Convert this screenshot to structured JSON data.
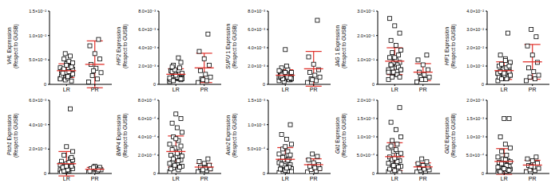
{
  "chart_data": [
    {
      "type": "scatter",
      "y_label": "VHL Expression (Respect to GUSB)",
      "categories": [
        "LR",
        "PR"
      ],
      "marker": "square",
      "color": "#000000",
      "ylim": [
        0,
        0.015
      ],
      "yticks": [
        0,
        {
          "value": 0.005,
          "label": "5.0×10⁻³"
        },
        {
          "value": 0.01,
          "label": "1.0×10⁻²"
        },
        {
          "value": 0.015,
          "label": "1.5×10⁻²"
        }
      ],
      "values": [
        [
          0.0012,
          0.0018,
          0.0025,
          0.0031,
          0.0022,
          0.0015,
          0.0038,
          0.0042,
          0.0027,
          0.0019,
          0.0009,
          0.0034,
          0.0047,
          0.0052,
          0.0021,
          0.0013,
          0.0029,
          0.0036,
          0.0024,
          0.0017,
          0.0058,
          0.0063,
          0.0011,
          0.0026,
          0.0032,
          0.0044,
          0.0016,
          0.0023,
          0.0007,
          0.0039
        ],
        [
          0.0005,
          0.0011,
          0.0018,
          0.0024,
          0.0033,
          0.0041,
          0.0052,
          0.0063,
          0.0079,
          0.0092,
          0.0028
        ]
      ],
      "mean": [
        0.0028,
        0.0041
      ],
      "sd": [
        0.0014,
        0.0048
      ]
    },
    {
      "type": "scatter",
      "y_label": "HIF2 Expression (Respect to GUSB)",
      "categories": [
        "LR",
        "PR"
      ],
      "marker": "square",
      "color": "#000000",
      "ylim": [
        0,
        0.008
      ],
      "yticks": [
        0,
        {
          "value": 0.002,
          "label": "2.0×10⁻³"
        },
        {
          "value": 0.004,
          "label": "4.0×10⁻³"
        },
        {
          "value": 0.006,
          "label": "6.0×10⁻³"
        },
        {
          "value": 0.008,
          "label": "8.0×10⁻³"
        }
      ],
      "values": [
        [
          0.0004,
          0.0006,
          0.0008,
          0.0011,
          0.0009,
          0.0013,
          0.0005,
          0.0007,
          0.0015,
          0.0018,
          0.0012,
          0.0003,
          0.001,
          0.0021,
          0.0006,
          0.0008,
          0.0014,
          0.0024,
          0.0009,
          0.0005,
          0.0011,
          0.0016,
          0.0007,
          0.0029,
          0.0004,
          0.0012,
          0.0008,
          0.0019,
          0.0006,
          0.001
        ],
        [
          0.0002,
          0.0004,
          0.0006,
          0.0008,
          0.0011,
          0.0015,
          0.0021,
          0.0028,
          0.0036,
          0.0055,
          0.0005
        ]
      ],
      "mean": [
        0.0011,
        0.0018
      ],
      "sd": [
        0.0006,
        0.0016
      ]
    },
    {
      "type": "scatter",
      "y_label": "SUFU 1 Expression (Respect to GUSB)",
      "categories": [
        "LR",
        "PR"
      ],
      "marker": "square",
      "color": "#000000",
      "ylim": [
        0,
        0.008
      ],
      "yticks": [
        0,
        {
          "value": 0.002,
          "label": "2.0×10⁻³"
        },
        {
          "value": 0.004,
          "label": "4.0×10⁻³"
        },
        {
          "value": 0.006,
          "label": "6.0×10⁻³"
        },
        {
          "value": 0.008,
          "label": "8.0×10⁻³"
        }
      ],
      "values": [
        [
          0.0004,
          0.0006,
          0.0008,
          0.001,
          0.0012,
          0.0007,
          0.0005,
          0.0009,
          0.0014,
          0.0011,
          0.0003,
          0.0008,
          0.0016,
          0.0006,
          0.0013,
          0.001,
          0.0018,
          0.0007,
          0.0038,
          0.0009,
          0.0005,
          0.0012,
          0.0015,
          0.0008,
          0.0011,
          0.0006,
          0.002,
          0.001,
          0.0007,
          0.0013
        ],
        [
          0.0002,
          0.0004,
          0.0006,
          0.0008,
          0.001,
          0.0013,
          0.0016,
          0.0022,
          0.003,
          0.007,
          0.0005
        ]
      ],
      "mean": [
        0.001,
        0.0017
      ],
      "sd": [
        0.0006,
        0.0019
      ]
    },
    {
      "type": "scatter",
      "y_label": "JAG 1 Expression (Respect to GUSB)",
      "categories": [
        "LR",
        "PR"
      ],
      "marker": "square",
      "color": "#000000",
      "ylim": [
        0,
        0.3
      ],
      "yticks": [
        0,
        {
          "value": 0.1,
          "label": "1.0×10⁻¹"
        },
        {
          "value": 0.2,
          "label": "2.0×10⁻¹"
        },
        {
          "value": 0.3,
          "label": "3.0×10⁻¹"
        }
      ],
      "values": [
        [
          0.02,
          0.04,
          0.05,
          0.06,
          0.07,
          0.08,
          0.09,
          0.1,
          0.11,
          0.12,
          0.05,
          0.06,
          0.08,
          0.03,
          0.14,
          0.16,
          0.18,
          0.21,
          0.24,
          0.27,
          0.07,
          0.09,
          0.05,
          0.04,
          0.13,
          0.06,
          0.1,
          0.08,
          0.03,
          0.11
        ],
        [
          0.01,
          0.02,
          0.03,
          0.03,
          0.04,
          0.05,
          0.06,
          0.08,
          0.1,
          0.12,
          0.02
        ]
      ],
      "mean": [
        0.095,
        0.05
      ],
      "sd": [
        0.055,
        0.035
      ]
    },
    {
      "type": "scatter",
      "y_label": "HIF1 Expression (Respect to GUSB)",
      "categories": [
        "LR",
        "PR"
      ],
      "marker": "square",
      "color": "#000000",
      "ylim": [
        0,
        0.04
      ],
      "yticks": [
        0,
        {
          "value": 0.01,
          "label": "1.0×10⁻²"
        },
        {
          "value": 0.02,
          "label": "2.0×10⁻²"
        },
        {
          "value": 0.03,
          "label": "3.0×10⁻²"
        },
        {
          "value": 0.04,
          "label": "4.0×10⁻²"
        }
      ],
      "values": [
        [
          0.002,
          0.003,
          0.004,
          0.005,
          0.006,
          0.007,
          0.008,
          0.009,
          0.01,
          0.004,
          0.005,
          0.006,
          0.003,
          0.011,
          0.012,
          0.014,
          0.016,
          0.007,
          0.005,
          0.004,
          0.028,
          0.008,
          0.006,
          0.009,
          0.003,
          0.005,
          0.013,
          0.007,
          0.01,
          0.006
        ],
        [
          0.002,
          0.003,
          0.004,
          0.005,
          0.007,
          0.009,
          0.012,
          0.016,
          0.021,
          0.026,
          0.03
        ]
      ],
      "mean": [
        0.0075,
        0.0123
      ],
      "sd": [
        0.0048,
        0.0095
      ]
    },
    {
      "type": "scatter",
      "y_label": "Ptch1 Expression (Respect to GUSB)",
      "categories": [
        "LR",
        "PR"
      ],
      "marker": "square",
      "color": "#000000",
      "ylim": [
        0,
        0.006
      ],
      "yticks": [
        0,
        {
          "value": 0.002,
          "label": "2.0×10⁻³"
        },
        {
          "value": 0.004,
          "label": "4.0×10⁻³"
        },
        {
          "value": 0.006,
          "label": "6.0×10⁻³"
        }
      ],
      "values": [
        [
          0.0001,
          0.0002,
          0.0003,
          0.0004,
          0.0005,
          0.0006,
          0.0007,
          0.0008,
          0.001,
          0.0012,
          0.0002,
          0.0003,
          0.0004,
          0.0015,
          0.0018,
          0.0003,
          0.0005,
          0.0006,
          0.0022,
          0.0001,
          0.0053,
          0.0004,
          0.0007,
          0.0009,
          0.0002,
          0.0011,
          0.0003,
          0.0005,
          0.0013,
          0.0006
        ],
        [
          0.0001,
          0.0002,
          0.0003,
          0.0003,
          0.0004,
          0.0004,
          0.0005,
          0.0006,
          0.0002,
          0.0003,
          0.0005
        ]
      ],
      "mean": [
        0.0008,
        0.00035
      ],
      "sd": [
        0.001,
        0.00015
      ]
    },
    {
      "type": "scatter",
      "y_label": "BMP4 Expression (Respect to GUSB)",
      "categories": [
        "LR",
        "PR"
      ],
      "marker": "square",
      "color": "#000000",
      "ylim": [
        0,
        0.0008
      ],
      "yticks": [
        0,
        {
          "value": 0.0002,
          "label": "2.0×10⁻⁴"
        },
        {
          "value": 0.0004,
          "label": "4.0×10⁻⁴"
        },
        {
          "value": 0.0006,
          "label": "6.0×10⁻⁴"
        },
        {
          "value": 0.0008,
          "label": "8.0×10⁻⁴"
        }
      ],
      "values": [
        [
          2e-05,
          4e-05,
          6e-05,
          8e-05,
          0.0001,
          0.00012,
          0.00015,
          0.00018,
          0.0002,
          0.00024,
          0.00028,
          0.00032,
          0.00036,
          0.0004,
          0.00045,
          0.0005,
          0.00055,
          0.0006,
          0.00065,
          5e-05,
          7e-05,
          9e-05,
          0.00011,
          0.00014,
          0.00016,
          0.00019,
          0.00022,
          0.00026,
          0.0003,
          0.00038
        ],
        [
          2e-05,
          3e-05,
          4e-05,
          5e-05,
          6e-05,
          7e-05,
          9e-05,
          0.00011,
          0.00013,
          0.00016,
          4e-05
        ]
      ],
      "mean": [
        0.00024,
        7e-05
      ],
      "sd": [
        0.00017,
        4e-05
      ]
    },
    {
      "type": "scatter",
      "y_label": "Axin2 Expression (Respect to GUSB)",
      "categories": [
        "LR",
        "PR"
      ],
      "marker": "square",
      "color": "#000000",
      "ylim": [
        0,
        0.0015
      ],
      "yticks": [
        0,
        {
          "value": 0.0005,
          "label": "5.0×10⁻⁴"
        },
        {
          "value": 0.001,
          "label": "1.0×10⁻³"
        },
        {
          "value": 0.0015,
          "label": "1.5×10⁻³"
        }
      ],
      "values": [
        [
          2e-05,
          5e-05,
          8e-05,
          0.0001,
          0.00012,
          0.00015,
          0.00018,
          0.0002,
          0.00025,
          0.0003,
          0.00035,
          0.0004,
          0.00045,
          0.0005,
          0.0006,
          0.0007,
          0.0008,
          0.001,
          6e-05,
          9e-05,
          0.00013,
          0.00016,
          0.00022,
          0.00027,
          0.00033,
          4e-05,
          0.00011,
          0.00019,
          0.00038,
          0.00055
        ],
        [
          3e-05,
          5e-05,
          8e-05,
          0.0001,
          0.00012,
          0.00015,
          0.00018,
          0.00022,
          0.00028,
          0.00035,
          0.0004
        ]
      ],
      "mean": [
        0.00029,
        0.00018
      ],
      "sd": [
        0.00024,
        0.00012
      ]
    },
    {
      "type": "scatter",
      "y_label": "Gli1 Expression (Respect to GUSB)",
      "categories": [
        "LR",
        "PR"
      ],
      "marker": "square",
      "color": "#000000",
      "ylim": [
        0,
        0.002
      ],
      "yticks": [
        0,
        {
          "value": 0.0005,
          "label": "5.0×10⁻⁴"
        },
        {
          "value": 0.001,
          "label": "1.0×10⁻³"
        },
        {
          "value": 0.0015,
          "label": "1.5×10⁻³"
        },
        {
          "value": 0.002,
          "label": "2.0×10⁻³"
        }
      ],
      "values": [
        [
          5e-05,
          0.0001,
          0.00015,
          0.0002,
          0.00025,
          0.0003,
          0.00035,
          0.0004,
          0.00045,
          0.0005,
          0.0006,
          0.0007,
          0.0008,
          0.0009,
          0.001,
          0.0012,
          0.0014,
          0.0018,
          8e-05,
          0.00012,
          0.00018,
          0.00022,
          0.00028,
          0.00033,
          0.00038,
          0.00055,
          0.00065,
          0.00075,
          3e-05,
          0.00042
        ],
        [
          4e-05,
          6e-05,
          8e-05,
          0.0001,
          0.00012,
          0.00015,
          0.00018,
          0.00022,
          0.00027,
          0.00032,
          0.0004
        ]
      ],
      "mean": [
        0.00046,
        0.00018
      ],
      "sd": [
        0.00038,
        0.00011
      ]
    },
    {
      "type": "scatter",
      "y_label": "Gli2 Expression (Respect to GUSB)",
      "categories": [
        "LR",
        "PR"
      ],
      "marker": "square",
      "color": "#000000",
      "ylim": [
        0,
        0.002
      ],
      "yticks": [
        0,
        {
          "value": 0.0005,
          "label": "5.0×10⁻⁴"
        },
        {
          "value": 0.001,
          "label": "1.0×10⁻³"
        },
        {
          "value": 0.0015,
          "label": "1.5×10⁻³"
        },
        {
          "value": 0.002,
          "label": "2.0×10⁻³"
        }
      ],
      "values": [
        [
          3e-05,
          6e-05,
          0.0001,
          0.00012,
          0.00015,
          0.00018,
          0.0002,
          0.00025,
          0.0003,
          0.00035,
          0.0004,
          0.00045,
          0.0005,
          0.0006,
          0.0007,
          0.0008,
          0.001,
          0.0015,
          0.0015,
          8e-05,
          0.00011,
          0.00014,
          0.00017,
          0.00022,
          0.00027,
          0.00032,
          0.00038,
          5e-05,
          9e-05,
          0.00013
        ],
        [
          5e-05,
          8e-05,
          0.0001,
          0.00014,
          0.00018,
          0.00022,
          0.00028,
          0.00035,
          0.0004,
          0.00045,
          0.0002
        ]
      ],
      "mean": [
        0.00033,
        0.00023
      ],
      "sd": [
        0.00035,
        0.00013
      ]
    }
  ]
}
